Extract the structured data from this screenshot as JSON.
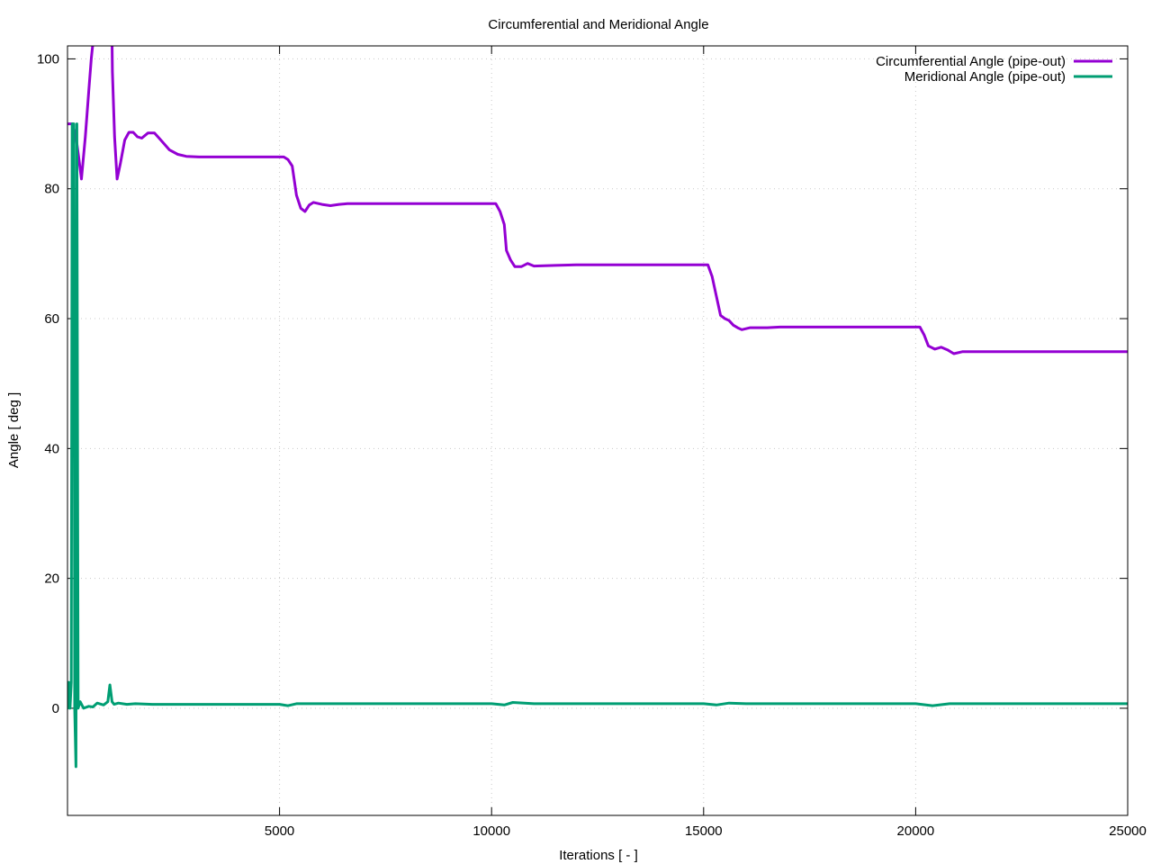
{
  "chart_data": {
    "type": "line",
    "title": "Circumferential and Meridional Angle",
    "xlabel": "Iterations [ - ]",
    "ylabel": "Angle [ deg ]",
    "xlim": [
      0,
      25000
    ],
    "ylim": [
      -16.5,
      102
    ],
    "x_ticks": [
      5000,
      10000,
      15000,
      20000,
      25000
    ],
    "y_ticks": [
      0,
      20,
      40,
      60,
      80,
      100
    ],
    "grid": true,
    "legend_position": "top-right",
    "series": [
      {
        "name": "Circumferential Angle (pipe-out)",
        "color": "#9400d3",
        "points": [
          [
            0,
            90
          ],
          [
            60,
            90
          ],
          [
            120,
            90
          ],
          [
            200,
            88
          ],
          [
            260,
            85
          ],
          [
            330,
            81.5
          ],
          [
            420,
            88
          ],
          [
            500,
            95
          ],
          [
            560,
            100
          ],
          [
            600,
            102.5
          ],
          [
            1050,
            102.5
          ],
          [
            1060,
            98
          ],
          [
            1110,
            88
          ],
          [
            1170,
            81.5
          ],
          [
            1250,
            84
          ],
          [
            1350,
            87.5
          ],
          [
            1450,
            88.7
          ],
          [
            1550,
            88.7
          ],
          [
            1650,
            88
          ],
          [
            1750,
            87.8
          ],
          [
            1900,
            88.6
          ],
          [
            2050,
            88.6
          ],
          [
            2200,
            87.5
          ],
          [
            2400,
            86
          ],
          [
            2600,
            85.3
          ],
          [
            2800,
            85
          ],
          [
            3100,
            84.9
          ],
          [
            4000,
            84.9
          ],
          [
            5100,
            84.9
          ],
          [
            5200,
            84.5
          ],
          [
            5300,
            83.5
          ],
          [
            5400,
            79
          ],
          [
            5500,
            77
          ],
          [
            5600,
            76.5
          ],
          [
            5700,
            77.5
          ],
          [
            5800,
            77.9
          ],
          [
            6000,
            77.6
          ],
          [
            6200,
            77.4
          ],
          [
            6400,
            77.6
          ],
          [
            6600,
            77.7
          ],
          [
            8000,
            77.7
          ],
          [
            10100,
            77.7
          ],
          [
            10200,
            76.5
          ],
          [
            10300,
            74.5
          ],
          [
            10350,
            70.5
          ],
          [
            10450,
            69
          ],
          [
            10550,
            68
          ],
          [
            10700,
            68
          ],
          [
            10850,
            68.5
          ],
          [
            11000,
            68.1
          ],
          [
            11500,
            68.2
          ],
          [
            12000,
            68.3
          ],
          [
            15100,
            68.3
          ],
          [
            15200,
            66.5
          ],
          [
            15300,
            63.5
          ],
          [
            15400,
            60.5
          ],
          [
            15500,
            60
          ],
          [
            15600,
            59.7
          ],
          [
            15700,
            59
          ],
          [
            15800,
            58.6
          ],
          [
            15900,
            58.3
          ],
          [
            16100,
            58.6
          ],
          [
            16300,
            58.6
          ],
          [
            16500,
            58.6
          ],
          [
            16800,
            58.7
          ],
          [
            20100,
            58.7
          ],
          [
            20200,
            57.5
          ],
          [
            20300,
            55.8
          ],
          [
            20450,
            55.3
          ],
          [
            20600,
            55.6
          ],
          [
            20750,
            55.2
          ],
          [
            20900,
            54.6
          ],
          [
            21100,
            54.9
          ],
          [
            21500,
            54.9
          ],
          [
            22000,
            54.9
          ],
          [
            25000,
            54.9
          ]
        ]
      },
      {
        "name": "Meridional Angle (pipe-out)",
        "color": "#009e73",
        "points": [
          [
            0,
            0
          ],
          [
            30,
            4
          ],
          [
            60,
            0
          ],
          [
            90,
            4
          ],
          [
            110,
            90
          ],
          [
            150,
            90
          ],
          [
            170,
            0
          ],
          [
            200,
            -9
          ],
          [
            220,
            90
          ],
          [
            250,
            0
          ],
          [
            300,
            1
          ],
          [
            380,
            0
          ],
          [
            500,
            0.3
          ],
          [
            600,
            0.2
          ],
          [
            700,
            0.8
          ],
          [
            850,
            0.5
          ],
          [
            950,
            1
          ],
          [
            1000,
            3.6
          ],
          [
            1050,
            1
          ],
          [
            1100,
            0.6
          ],
          [
            1200,
            0.8
          ],
          [
            1400,
            0.6
          ],
          [
            1600,
            0.7
          ],
          [
            2000,
            0.6
          ],
          [
            3000,
            0.6
          ],
          [
            4000,
            0.6
          ],
          [
            5000,
            0.6
          ],
          [
            5200,
            0.4
          ],
          [
            5400,
            0.7
          ],
          [
            6000,
            0.7
          ],
          [
            8000,
            0.7
          ],
          [
            10000,
            0.7
          ],
          [
            10300,
            0.5
          ],
          [
            10500,
            0.9
          ],
          [
            11000,
            0.7
          ],
          [
            13000,
            0.7
          ],
          [
            15000,
            0.7
          ],
          [
            15300,
            0.5
          ],
          [
            15600,
            0.8
          ],
          [
            16000,
            0.7
          ],
          [
            20000,
            0.7
          ],
          [
            20400,
            0.4
          ],
          [
            20800,
            0.7
          ],
          [
            23000,
            0.7
          ],
          [
            25000,
            0.7
          ]
        ]
      }
    ]
  }
}
